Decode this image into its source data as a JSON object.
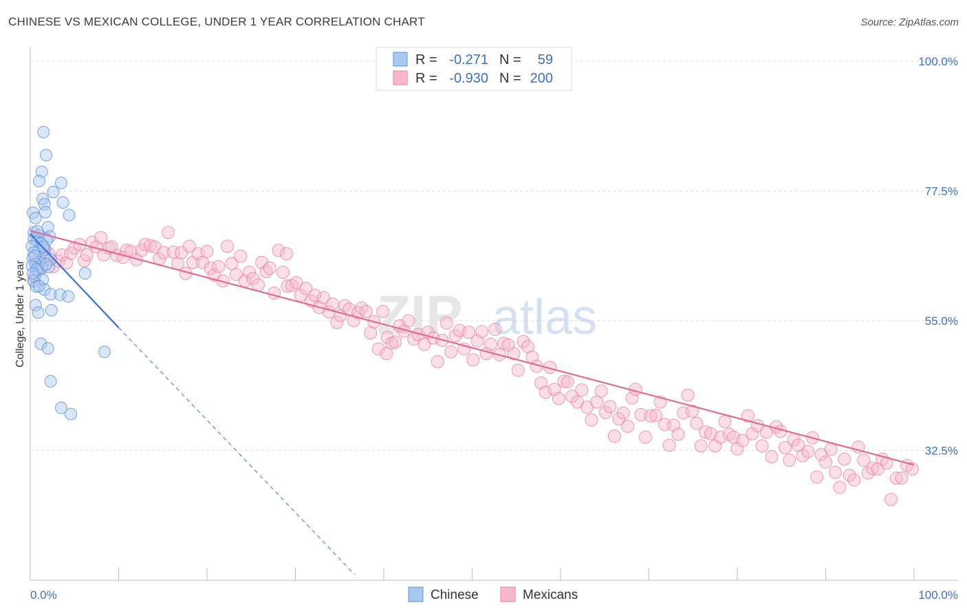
{
  "title": "CHINESE VS MEXICAN COLLEGE, UNDER 1 YEAR CORRELATION CHART",
  "source": "Source: ZipAtlas.com",
  "watermark": {
    "zip": "ZIP",
    "atlas": "atlas"
  },
  "colors": {
    "chinese_fill": "#a9c8f0",
    "chinese_stroke": "#5a8fd8",
    "chinese_line": "#3a70d0",
    "mexican_fill": "#f7b8cc",
    "mexican_stroke": "#e880a2",
    "mexican_line": "#e06a93",
    "value_text": "#3d6fc4",
    "grid": "#dddddd"
  },
  "legend_stats": [
    {
      "r_label": "R =",
      "r_value": "-0.271",
      "n_label": "N =",
      "n_value": "59"
    },
    {
      "r_label": "R =",
      "r_value": "-0.930",
      "n_label": "N =",
      "n_value": "200"
    }
  ],
  "chart_data": {
    "type": "scatter",
    "title": "CHINESE VS MEXICAN COLLEGE, UNDER 1 YEAR CORRELATION CHART",
    "xlabel": "",
    "ylabel": "College, Under 1 year",
    "xlim": [
      0,
      100
    ],
    "ylim": [
      10,
      102
    ],
    "x_tick_labels": [
      "0.0%",
      "100.0%"
    ],
    "y_ticks": [
      32.5,
      55.0,
      77.5,
      100.0
    ],
    "y_tick_labels": [
      "32.5%",
      "55.0%",
      "77.5%",
      "100.0%"
    ],
    "grid": true,
    "legend_position": "bottom-center",
    "series": [
      {
        "name": "Chinese",
        "trend": {
          "x0": 0,
          "y0": 70.0,
          "x1": 10,
          "y1": 53.8,
          "dash_to_x": 36.7,
          "dash_to_y": 11.0
        },
        "points": [
          [
            1.5,
            87.7
          ],
          [
            1.8,
            83.7
          ],
          [
            1.3,
            80.8
          ],
          [
            1.0,
            79.2
          ],
          [
            3.5,
            78.9
          ],
          [
            2.6,
            77.3
          ],
          [
            1.4,
            76.1
          ],
          [
            3.7,
            75.5
          ],
          [
            1.6,
            75.2
          ],
          [
            1.7,
            73.8
          ],
          [
            0.3,
            73.7
          ],
          [
            4.4,
            73.3
          ],
          [
            0.6,
            72.8
          ],
          [
            2.0,
            71.2
          ],
          [
            0.4,
            70.3
          ],
          [
            1.0,
            69.8
          ],
          [
            2.2,
            69.6
          ],
          [
            0.4,
            69.2
          ],
          [
            1.9,
            69.0
          ],
          [
            0.8,
            68.8
          ],
          [
            1.2,
            68.4
          ],
          [
            0.2,
            67.9
          ],
          [
            1.6,
            67.4
          ],
          [
            0.9,
            67.1
          ],
          [
            0.4,
            66.8
          ],
          [
            1.6,
            66.3
          ],
          [
            0.3,
            65.8
          ],
          [
            2.3,
            65.6
          ],
          [
            1.1,
            65.1
          ],
          [
            0.6,
            64.8
          ],
          [
            0.2,
            64.5
          ],
          [
            1.3,
            64.1
          ],
          [
            2.1,
            64.3
          ],
          [
            0.9,
            63.6
          ],
          [
            0.7,
            63.9
          ],
          [
            6.2,
            63.2
          ],
          [
            0.5,
            62.6
          ],
          [
            1.4,
            62.1
          ],
          [
            0.4,
            61.8
          ],
          [
            0.7,
            60.9
          ],
          [
            1.6,
            60.4
          ],
          [
            2.3,
            59.6
          ],
          [
            3.4,
            59.5
          ],
          [
            4.3,
            59.2
          ],
          [
            0.6,
            57.7
          ],
          [
            2.4,
            56.8
          ],
          [
            0.9,
            56.4
          ],
          [
            1.2,
            51.0
          ],
          [
            2.0,
            50.2
          ],
          [
            8.4,
            49.6
          ],
          [
            2.3,
            44.5
          ],
          [
            3.5,
            39.9
          ],
          [
            4.6,
            38.8
          ],
          [
            0.8,
            70.5
          ],
          [
            1.5,
            67.8
          ],
          [
            0.5,
            66.2
          ],
          [
            1.8,
            64.8
          ],
          [
            0.3,
            63.2
          ],
          [
            1.0,
            61.0
          ]
        ]
      },
      {
        "name": "Mexicans",
        "trend": {
          "x0": 0,
          "y0": 70.6,
          "x1": 100,
          "y1": 30.0
        },
        "points": [
          [
            0.4,
            62.0
          ],
          [
            0.8,
            65.2
          ],
          [
            1.2,
            64.2
          ],
          [
            1.7,
            67.3
          ],
          [
            2.1,
            66.6
          ],
          [
            2.6,
            64.4
          ],
          [
            3.2,
            65.3
          ],
          [
            3.6,
            66.4
          ],
          [
            4.1,
            65.0
          ],
          [
            4.6,
            66.7
          ],
          [
            5.0,
            67.6
          ],
          [
            5.6,
            68.2
          ],
          [
            6.1,
            65.4
          ],
          [
            6.4,
            66.4
          ],
          [
            7.0,
            68.6
          ],
          [
            7.5,
            67.8
          ],
          [
            8.0,
            69.4
          ],
          [
            8.3,
            66.4
          ],
          [
            8.9,
            67.6
          ],
          [
            9.2,
            67.8
          ],
          [
            9.8,
            66.3
          ],
          [
            10.5,
            66.0
          ],
          [
            10.9,
            67.2
          ],
          [
            11.4,
            67.0
          ],
          [
            12.0,
            65.6
          ],
          [
            12.6,
            67.2
          ],
          [
            13.0,
            68.2
          ],
          [
            13.6,
            68.0
          ],
          [
            14.1,
            67.8
          ],
          [
            14.6,
            65.7
          ],
          [
            15.1,
            66.8
          ],
          [
            15.6,
            70.3
          ],
          [
            16.2,
            66.9
          ],
          [
            16.7,
            64.9
          ],
          [
            17.1,
            66.8
          ],
          [
            17.6,
            63.2
          ],
          [
            18.0,
            67.9
          ],
          [
            18.4,
            65.1
          ],
          [
            19.0,
            66.6
          ],
          [
            19.5,
            65.1
          ],
          [
            20.0,
            67.0
          ],
          [
            20.4,
            64.1
          ],
          [
            20.8,
            62.9
          ],
          [
            21.3,
            64.4
          ],
          [
            21.8,
            61.9
          ],
          [
            22.3,
            67.9
          ],
          [
            22.8,
            64.9
          ],
          [
            23.3,
            63.0
          ],
          [
            23.8,
            66.2
          ],
          [
            24.3,
            61.9
          ],
          [
            24.8,
            63.4
          ],
          [
            25.2,
            62.3
          ],
          [
            25.8,
            61.2
          ],
          [
            26.2,
            65.1
          ],
          [
            26.7,
            63.5
          ],
          [
            27.1,
            64.1
          ],
          [
            27.6,
            59.8
          ],
          [
            28.1,
            67.2
          ],
          [
            28.6,
            63.4
          ],
          [
            29.1,
            61.0
          ],
          [
            29.6,
            61.1
          ],
          [
            30.1,
            61.6
          ],
          [
            30.6,
            59.4
          ],
          [
            31.2,
            60.6
          ],
          [
            31.8,
            58.4
          ],
          [
            32.2,
            59.4
          ],
          [
            32.7,
            57.3
          ],
          [
            33.2,
            59.0
          ],
          [
            33.8,
            56.5
          ],
          [
            34.2,
            57.9
          ],
          [
            34.7,
            54.7
          ],
          [
            35.1,
            55.9
          ],
          [
            35.6,
            57.6
          ],
          [
            36.1,
            57.0
          ],
          [
            36.6,
            55.0
          ],
          [
            37.1,
            56.4
          ],
          [
            37.5,
            57.2
          ],
          [
            38.0,
            56.6
          ],
          [
            38.5,
            52.9
          ],
          [
            38.9,
            54.8
          ],
          [
            39.4,
            50.1
          ],
          [
            39.9,
            56.6
          ],
          [
            40.4,
            52.1
          ],
          [
            40.9,
            51.1
          ],
          [
            41.3,
            51.3
          ],
          [
            41.8,
            54.1
          ],
          [
            42.3,
            53.2
          ],
          [
            42.8,
            55.0
          ],
          [
            43.4,
            51.8
          ],
          [
            43.9,
            52.6
          ],
          [
            44.6,
            50.9
          ],
          [
            45.0,
            53.0
          ],
          [
            45.6,
            52.0
          ],
          [
            46.1,
            47.9
          ],
          [
            46.6,
            51.6
          ],
          [
            47.1,
            54.6
          ],
          [
            47.6,
            49.6
          ],
          [
            48.1,
            52.4
          ],
          [
            48.6,
            53.3
          ],
          [
            49.1,
            50.1
          ],
          [
            49.6,
            53.0
          ],
          [
            50.1,
            48.2
          ],
          [
            50.6,
            51.5
          ],
          [
            51.1,
            53.1
          ],
          [
            51.6,
            49.3
          ],
          [
            52.1,
            50.9
          ],
          [
            52.6,
            53.5
          ],
          [
            53.1,
            49.1
          ],
          [
            53.6,
            51.1
          ],
          [
            54.1,
            50.8
          ],
          [
            54.7,
            49.3
          ],
          [
            55.2,
            46.4
          ],
          [
            55.8,
            51.4
          ],
          [
            56.3,
            50.5
          ],
          [
            56.8,
            48.7
          ],
          [
            57.3,
            47.1
          ],
          [
            57.8,
            44.2
          ],
          [
            58.3,
            42.6
          ],
          [
            58.8,
            46.9
          ],
          [
            59.3,
            43.1
          ],
          [
            59.8,
            41.5
          ],
          [
            60.4,
            44.5
          ],
          [
            60.8,
            44.4
          ],
          [
            61.3,
            41.9
          ],
          [
            61.9,
            40.9
          ],
          [
            62.4,
            43.0
          ],
          [
            63.0,
            40.0
          ],
          [
            63.5,
            37.8
          ],
          [
            64.1,
            40.9
          ],
          [
            64.6,
            42.8
          ],
          [
            65.1,
            39.1
          ],
          [
            65.6,
            40.1
          ],
          [
            66.1,
            35.0
          ],
          [
            66.6,
            38.0
          ],
          [
            67.1,
            39.0
          ],
          [
            67.6,
            36.7
          ],
          [
            68.1,
            41.6
          ],
          [
            68.5,
            43.1
          ],
          [
            69.1,
            38.7
          ],
          [
            69.6,
            34.8
          ],
          [
            70.2,
            38.5
          ],
          [
            70.8,
            38.6
          ],
          [
            71.3,
            40.9
          ],
          [
            71.8,
            37.0
          ],
          [
            72.3,
            33.4
          ],
          [
            72.8,
            36.9
          ],
          [
            73.3,
            35.3
          ],
          [
            73.9,
            39.0
          ],
          [
            74.4,
            42.1
          ],
          [
            74.9,
            39.3
          ],
          [
            75.4,
            37.2
          ],
          [
            75.9,
            33.3
          ],
          [
            76.4,
            35.7
          ],
          [
            77.0,
            35.4
          ],
          [
            77.5,
            33.3
          ],
          [
            78.1,
            34.8
          ],
          [
            78.6,
            37.5
          ],
          [
            79.1,
            35.3
          ],
          [
            79.6,
            34.8
          ],
          [
            80.0,
            32.8
          ],
          [
            80.6,
            34.2
          ],
          [
            81.2,
            38.5
          ],
          [
            81.7,
            35.4
          ],
          [
            82.3,
            36.8
          ],
          [
            82.8,
            33.3
          ],
          [
            83.3,
            35.7
          ],
          [
            83.9,
            31.4
          ],
          [
            84.4,
            36.6
          ],
          [
            84.9,
            35.8
          ],
          [
            85.4,
            33.0
          ],
          [
            85.9,
            30.8
          ],
          [
            86.4,
            34.4
          ],
          [
            86.9,
            33.4
          ],
          [
            87.4,
            31.6
          ],
          [
            88.0,
            32.3
          ],
          [
            88.5,
            34.7
          ],
          [
            89.0,
            27.9
          ],
          [
            89.5,
            31.8
          ],
          [
            90.0,
            30.5
          ],
          [
            90.6,
            32.7
          ],
          [
            91.1,
            28.7
          ],
          [
            91.6,
            26.1
          ],
          [
            92.1,
            31.0
          ],
          [
            92.7,
            28.2
          ],
          [
            93.2,
            27.4
          ],
          [
            93.7,
            33.1
          ],
          [
            94.3,
            30.8
          ],
          [
            94.8,
            28.6
          ],
          [
            95.3,
            29.4
          ],
          [
            95.9,
            29.3
          ],
          [
            96.4,
            31.0
          ],
          [
            96.9,
            30.3
          ],
          [
            97.4,
            24.0
          ],
          [
            98.0,
            27.7
          ],
          [
            98.6,
            27.7
          ],
          [
            99.2,
            29.9
          ],
          [
            99.8,
            29.3
          ],
          [
            29.0,
            66.6
          ],
          [
            40.3,
            49.3
          ]
        ]
      }
    ]
  },
  "x_axis_labels": {
    "left": "0.0%",
    "right": "100.0%"
  },
  "y_axis_label": "College, Under 1 year"
}
